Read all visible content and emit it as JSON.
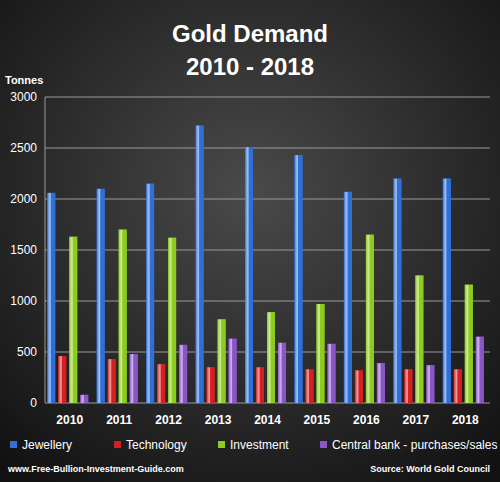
{
  "chart_data": {
    "type": "bar",
    "title": "Gold Demand",
    "subtitle": "2010 - 2018",
    "y_label": "Tonnes",
    "categories": [
      "2010",
      "2011",
      "2012",
      "2013",
      "2014",
      "2015",
      "2016",
      "2017",
      "2018"
    ],
    "series": [
      {
        "name": "Jewellery",
        "color": "#2f6fd8",
        "values": [
          2060,
          2100,
          2150,
          2720,
          2510,
          2430,
          2070,
          2200,
          2200
        ]
      },
      {
        "name": "Technology",
        "color": "#d42020",
        "values": [
          460,
          430,
          380,
          350,
          350,
          330,
          320,
          330,
          330
        ]
      },
      {
        "name": "Investment",
        "color": "#8ccc1c",
        "values": [
          1630,
          1700,
          1620,
          820,
          890,
          970,
          1650,
          1250,
          1160
        ]
      },
      {
        "name": "Central bank - purchases/sales",
        "color": "#8a55c8",
        "values": [
          80,
          480,
          570,
          630,
          590,
          580,
          390,
          370,
          650
        ]
      }
    ],
    "ylim": [
      0,
      3000
    ],
    "yticks": [
      0,
      500,
      1000,
      1500,
      2000,
      2500,
      3000
    ],
    "grid": true,
    "legend": "bottom",
    "annotations": [
      "www.Free-Bullion-Investment-Guide.com",
      "Source: World Gold Council"
    ]
  }
}
